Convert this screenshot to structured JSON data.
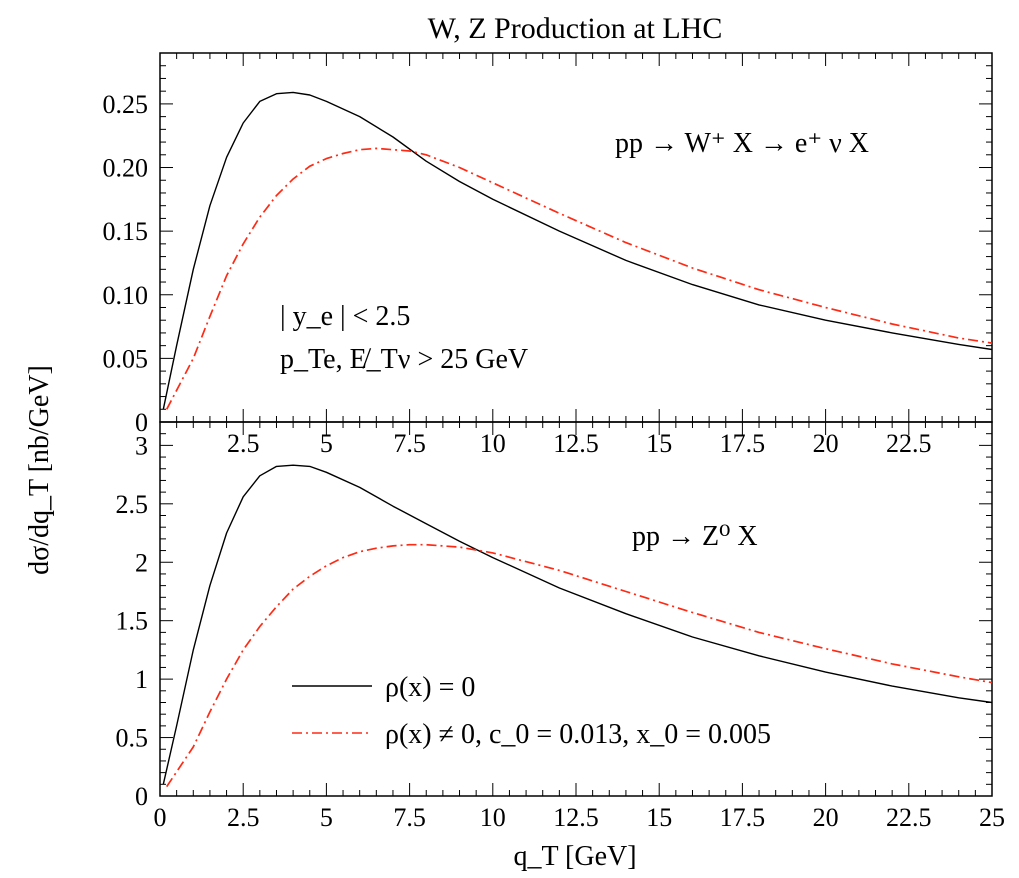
{
  "title": "W, Z Production at LHC",
  "ylabel": "dσ/dq_T [nb/GeV]",
  "xlabel": "q_T [GeV]",
  "colors": {
    "series_zero": "#000000",
    "series_nonzero": "#ff2a14"
  },
  "chart_data": [
    {
      "type": "line",
      "panel": "top",
      "process": "pp → W⁺ X → e⁺ ν X",
      "cuts": [
        "| y_e | < 2.5",
        "p_Te, E̸_Tν > 25 GeV"
      ],
      "xlim": [
        0,
        25
      ],
      "ylim": [
        0,
        0.29
      ],
      "xticks": [
        2.5,
        5,
        7.5,
        10,
        12.5,
        15,
        17.5,
        20,
        22.5
      ],
      "yticks": [
        0,
        0.05,
        0.1,
        0.15,
        0.2,
        0.25
      ],
      "ytick_labels": [
        "0",
        "0.05",
        "0.10",
        "0.15",
        "0.20",
        "0.25"
      ],
      "series": [
        {
          "name": "ρ(x) = 0",
          "style": "solid",
          "x": [
            0.1,
            0.5,
            1,
            1.5,
            2,
            2.5,
            3,
            3.5,
            4,
            4.5,
            5,
            6,
            7,
            8,
            9,
            10,
            12,
            14,
            16,
            18,
            20,
            22,
            24,
            25
          ],
          "y": [
            0.01,
            0.06,
            0.12,
            0.17,
            0.208,
            0.235,
            0.252,
            0.258,
            0.259,
            0.257,
            0.252,
            0.24,
            0.224,
            0.205,
            0.189,
            0.175,
            0.15,
            0.127,
            0.108,
            0.092,
            0.08,
            0.07,
            0.061,
            0.057
          ]
        },
        {
          "name": "ρ(x) ≠ 0, c_0 = 0.013, x_0 = 0.005",
          "style": "dash-dot",
          "x": [
            0.2,
            1,
            1.5,
            2,
            2.5,
            3,
            3.5,
            4,
            4.5,
            5,
            5.5,
            6,
            6.5,
            7,
            7.5,
            8,
            9,
            10,
            12,
            14,
            16,
            18,
            20,
            22,
            24,
            25
          ],
          "y": [
            0.01,
            0.05,
            0.083,
            0.115,
            0.14,
            0.161,
            0.178,
            0.191,
            0.201,
            0.207,
            0.211,
            0.214,
            0.215,
            0.214,
            0.213,
            0.21,
            0.2,
            0.188,
            0.164,
            0.141,
            0.121,
            0.104,
            0.09,
            0.077,
            0.066,
            0.062
          ]
        }
      ]
    },
    {
      "type": "line",
      "panel": "bottom",
      "process": "pp → Z⁰ X",
      "xlim": [
        0,
        25
      ],
      "ylim": [
        0,
        3.2
      ],
      "xticks": [
        0,
        2.5,
        5,
        7.5,
        10,
        12.5,
        15,
        17.5,
        20,
        22.5,
        25
      ],
      "yticks": [
        0,
        0.5,
        1,
        1.5,
        2,
        2.5,
        3
      ],
      "ytick_labels": [
        "0",
        "0.5",
        "1",
        "1.5",
        "2",
        "2.5",
        "3"
      ],
      "series": [
        {
          "name": "ρ(x) = 0",
          "style": "solid",
          "x": [
            0.1,
            0.5,
            1,
            1.5,
            2,
            2.5,
            3,
            3.5,
            4,
            4.5,
            5,
            6,
            7,
            8,
            9,
            10,
            12,
            14,
            16,
            18,
            20,
            22,
            24,
            25
          ],
          "y": [
            0.1,
            0.6,
            1.25,
            1.8,
            2.25,
            2.56,
            2.74,
            2.82,
            2.83,
            2.82,
            2.77,
            2.64,
            2.48,
            2.33,
            2.18,
            2.04,
            1.78,
            1.56,
            1.36,
            1.2,
            1.06,
            0.94,
            0.84,
            0.8
          ]
        },
        {
          "name": "ρ(x) ≠ 0, c_0 = 0.013, x_0 = 0.005",
          "style": "dash-dot",
          "x": [
            0.2,
            1,
            1.5,
            2,
            2.5,
            3,
            3.5,
            4,
            4.5,
            5,
            5.5,
            6,
            6.5,
            7,
            7.5,
            8,
            9,
            10,
            12,
            14,
            16,
            18,
            20,
            22,
            24,
            25
          ],
          "y": [
            0.08,
            0.42,
            0.72,
            1.0,
            1.25,
            1.45,
            1.62,
            1.77,
            1.88,
            1.97,
            2.04,
            2.09,
            2.12,
            2.14,
            2.15,
            2.15,
            2.13,
            2.08,
            1.93,
            1.75,
            1.57,
            1.4,
            1.26,
            1.13,
            1.02,
            0.97
          ]
        }
      ]
    }
  ]
}
